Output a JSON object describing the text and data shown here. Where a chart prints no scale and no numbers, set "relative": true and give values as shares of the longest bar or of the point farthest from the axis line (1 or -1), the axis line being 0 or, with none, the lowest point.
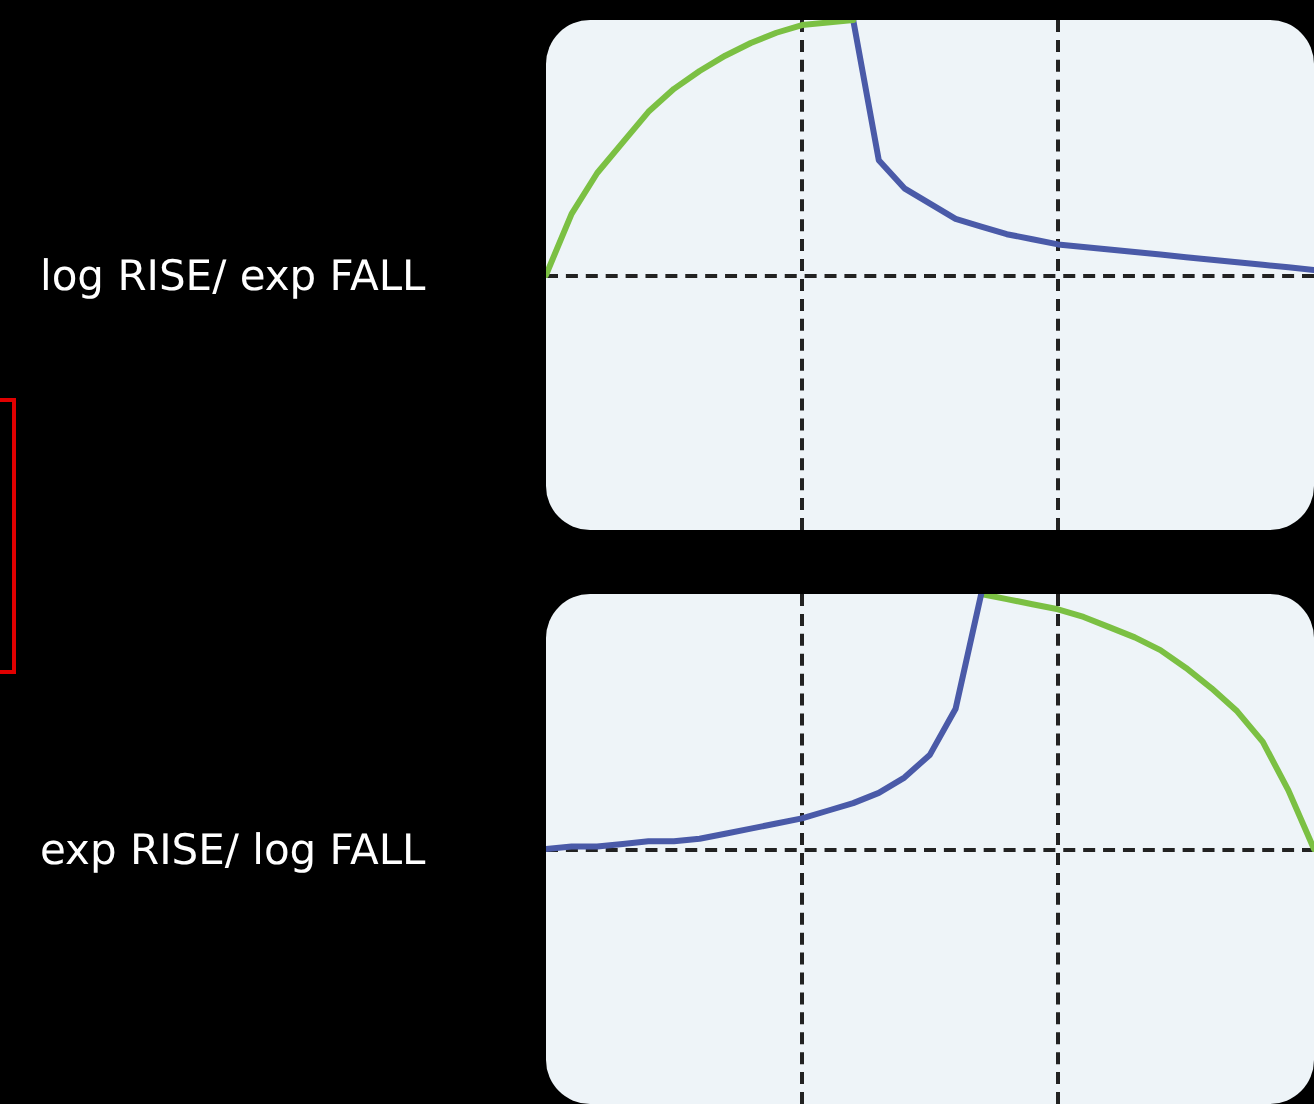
{
  "chart_data": [
    {
      "type": "line",
      "title": "log RISE/ exp FALL",
      "relative": true,
      "legend": false,
      "marker": "none",
      "line_style": "solid",
      "categories": [
        null,
        null,
        null,
        null,
        null,
        null,
        null,
        null,
        null,
        null,
        null,
        null,
        null,
        null,
        null,
        null,
        null,
        null,
        null,
        null,
        null,
        null,
        null,
        null,
        null,
        null,
        null,
        null,
        null,
        null,
        null
      ],
      "series": [
        {
          "color": "#7bc043",
          "values": [
            0,
            0.24,
            0.4,
            0.52,
            0.64,
            0.73,
            0.8,
            0.86,
            0.91,
            0.95,
            0.98,
            0.99,
            1,
            null,
            null,
            null,
            null,
            null,
            null,
            null,
            null,
            null,
            null,
            null,
            null,
            null,
            null,
            null,
            null,
            null,
            null
          ]
        },
        {
          "color": "#4a5aa8",
          "values": [
            null,
            null,
            null,
            null,
            null,
            null,
            null,
            null,
            null,
            null,
            null,
            null,
            1,
            0.45,
            0.34,
            0.28,
            0.22,
            0.19,
            0.16,
            0.14,
            0.12,
            0.11,
            0.1,
            0.09,
            0.08,
            0.07,
            0.06,
            0.05,
            0.04,
            0.03,
            0.02
          ]
        }
      ]
    },
    {
      "type": "line",
      "title": "exp RISE/ log FALL",
      "relative": true,
      "legend": false,
      "marker": "none",
      "line_style": "solid",
      "categories": [
        null,
        null,
        null,
        null,
        null,
        null,
        null,
        null,
        null,
        null,
        null,
        null,
        null,
        null,
        null,
        null,
        null,
        null,
        null,
        null,
        null,
        null,
        null,
        null,
        null,
        null,
        null,
        null,
        null,
        null,
        null
      ],
      "series": [
        {
          "color": "#4a5aa8",
          "values": [
            0,
            0.01,
            0.01,
            0.02,
            0.03,
            0.03,
            0.04,
            0.06,
            0.08,
            0.1,
            0.12,
            0.15,
            0.18,
            0.22,
            0.28,
            0.37,
            0.55,
            1,
            null,
            null,
            null,
            null,
            null,
            null,
            null,
            null,
            null,
            null,
            null,
            null,
            null
          ]
        },
        {
          "color": "#7bc043",
          "values": [
            null,
            null,
            null,
            null,
            null,
            null,
            null,
            null,
            null,
            null,
            null,
            null,
            null,
            null,
            null,
            null,
            null,
            1,
            0.98,
            0.96,
            0.94,
            0.91,
            0.87,
            0.83,
            0.78,
            0.71,
            0.63,
            0.54,
            0.42,
            0.23,
            0
          ]
        }
      ]
    }
  ]
}
